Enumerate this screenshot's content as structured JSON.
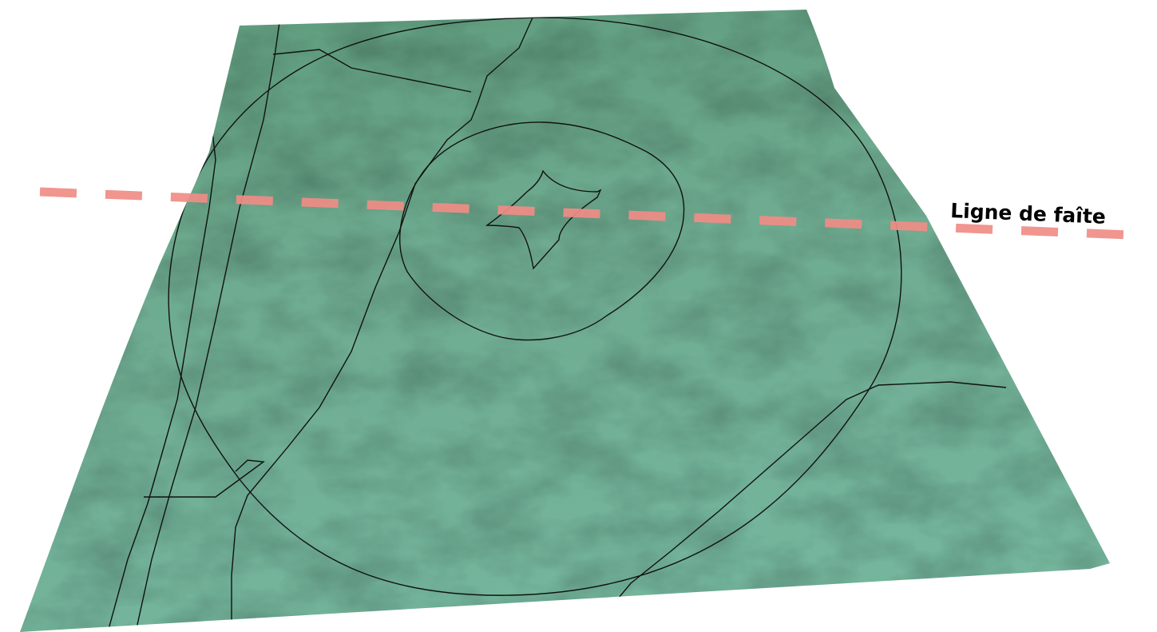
{
  "labels": {
    "ridge_line": "Ligne de faîte"
  },
  "colors": {
    "terrain_light": "#79b7a0",
    "terrain_mid": "#6aa58b",
    "terrain_dark": "#5b9479",
    "lines": "#111111",
    "ridge_dash": "#f08c86",
    "background": "#ffffff"
  }
}
